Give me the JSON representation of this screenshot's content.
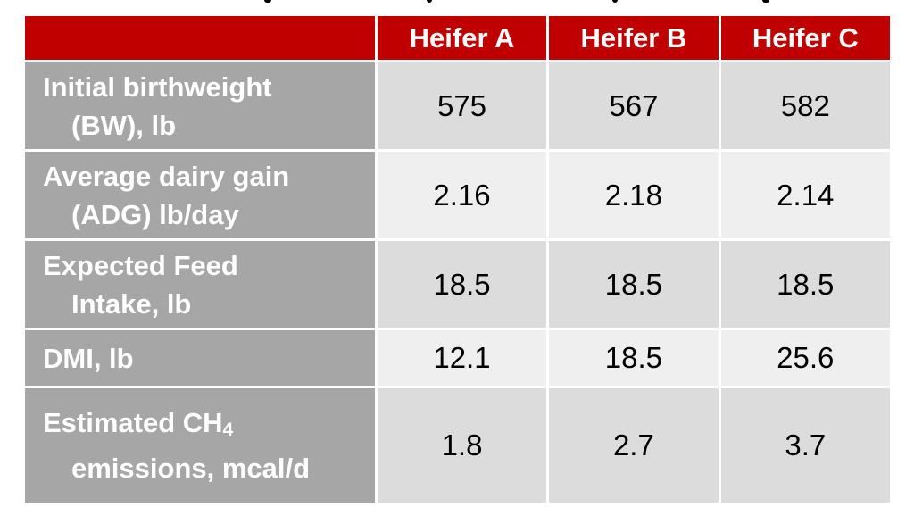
{
  "table": {
    "columns": [
      "",
      "Heifer A",
      "Heifer B",
      "Heifer C"
    ],
    "rows": [
      {
        "label_line1": "Initial birthweight",
        "label_line2": "(BW), lb",
        "values": [
          "575",
          "567",
          "582"
        ]
      },
      {
        "label_line1": "Average dairy gain",
        "label_line2": "(ADG) lb/day",
        "values": [
          "2.16",
          "2.18",
          "2.14"
        ]
      },
      {
        "label_line1": "Expected Feed",
        "label_line2": "Intake, lb",
        "values": [
          "18.5",
          "18.5",
          "18.5"
        ]
      },
      {
        "label_line1": "DMI, lb",
        "label_line2": "",
        "values": [
          "12.1",
          "18.5",
          "25.6"
        ]
      },
      {
        "label_line1": "Estimated CH",
        "label_sub": "4",
        "label_line2": "emissions, mcal/d",
        "values": [
          "1.8",
          "2.7",
          "3.7"
        ]
      }
    ]
  },
  "colors": {
    "header_bg": "#c00000",
    "row_header_bg": "#a6a6a6",
    "cell_bg_odd": "#dcdcdc",
    "cell_bg_even": "#efefef"
  }
}
